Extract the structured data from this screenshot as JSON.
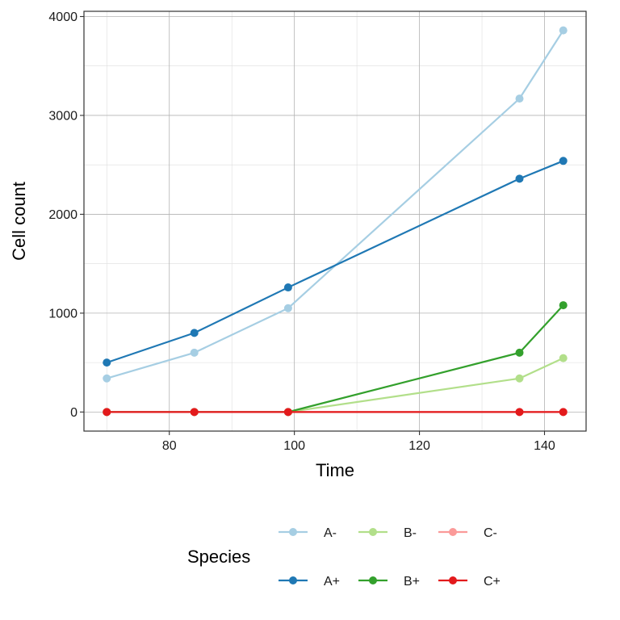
{
  "chart_data": {
    "type": "line",
    "title": "",
    "xlabel": "Time",
    "ylabel": "Cell count",
    "xlim": [
      66.35,
      146.65
    ],
    "ylim": [
      -193,
      4053
    ],
    "x_ticks": [
      80,
      100,
      120,
      140
    ],
    "x_tick_labels": [
      "80",
      "100",
      "120",
      "140"
    ],
    "x_minor_ticks": [
      70,
      90,
      110,
      130
    ],
    "y_ticks": [
      0,
      1000,
      2000,
      3000,
      4000
    ],
    "y_tick_labels": [
      "0",
      "1000",
      "2000",
      "3000",
      "4000"
    ],
    "y_minor_ticks": [
      500,
      1500,
      2500,
      3500
    ],
    "grid": true,
    "x": [
      70,
      84,
      99,
      136,
      143
    ],
    "series": [
      {
        "name": "A-",
        "color": "#a6cee3",
        "values": [
          340,
          600,
          1050,
          3170,
          3860
        ]
      },
      {
        "name": "A+",
        "color": "#1f78b4",
        "values": [
          500,
          800,
          1260,
          2360,
          2540
        ]
      },
      {
        "name": "B-",
        "color": "#b2df8a",
        "values": [
          0,
          0,
          0,
          340,
          545
        ]
      },
      {
        "name": "B+",
        "color": "#33a02c",
        "values": [
          0,
          0,
          0,
          600,
          1080
        ]
      },
      {
        "name": "C-",
        "color": "#fb9a99",
        "values": [
          0,
          0,
          0,
          0,
          0
        ]
      },
      {
        "name": "C+",
        "color": "#e31a1c",
        "values": [
          0,
          0,
          0,
          0,
          0
        ]
      }
    ],
    "legend": {
      "title": "Species",
      "placement": "bottom",
      "rows": [
        [
          "A-",
          "B-",
          "C-"
        ],
        [
          "A+",
          "B+",
          "C+"
        ]
      ]
    }
  }
}
